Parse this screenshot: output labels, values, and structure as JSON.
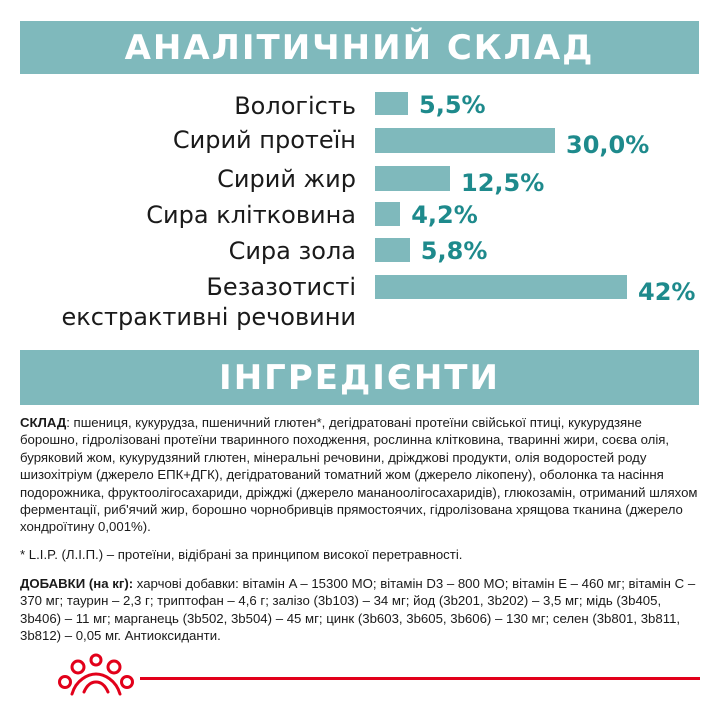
{
  "analysis": {
    "title": "АНАЛІТИЧНИЙ СКЛАД",
    "rows": [
      {
        "label": "Вологість",
        "value_text": "5,5%",
        "value": 5.5
      },
      {
        "label": "Сирий протеїн",
        "value_text": "30,0%",
        "value": 30.0
      },
      {
        "label": "Сирий жир",
        "value_text": "12,5%",
        "value": 12.5
      },
      {
        "label": "Сира клітковина",
        "value_text": "4,2%",
        "value": 4.2
      },
      {
        "label": "Сира зола",
        "value_text": "5,8%",
        "value": 5.8
      },
      {
        "label_line1": "Безазотисті",
        "label_line2": "екстрактивні речовини",
        "value_text": "42%",
        "value": 42
      }
    ]
  },
  "ingredients": {
    "title": "ІНГРЕДІЄНТИ",
    "composition_heading": "СКЛАД",
    "composition_text": ": пшениця, кукурудза, пшеничний глютен*, дегідратовані протеїни свійської птиці, кукурудзяне борошно, гідролізовані протеїни тваринного походження, рослинна клітковина, тваринні жири, соєва олія, буряковий жом, кукурудзяний глютен, мінеральні речовини, дріжджові продукти, олія водоростей роду шизохітріум (джерело ЕПК+ДГК), дегідратований томатний жом (джерело лікопену), оболонка та насіння подорожника, фруктоолігосахариди, дріжджі (джерело мананоолігосахаридів), глюкозамін, отриманий шляхом ферментації, риб'ячий жир, борошно чорнобривців прямостоячих, гідролізована хрящова тканина (джерело хондроїтину 0,001%).",
    "footnote": "* L.I.P. (Л.І.П.) – протеїни, відібрані за принципом високої перетравності.",
    "additives_heading": "ДОБАВКИ (на кг):",
    "additives_text": " харчові добавки: вітамін A – 15300 МО; вітамін D3 – 800 МО; вітамін E – 460 мг; вітамін C – 370 мг; таурин – 2,3 г; триптофан – 4,6 г; залізо (3b103) – 34 мг; йод (3b201, 3b202) – 3,5 мг; мідь (3b405, 3b406) – 11 мг; марганець (3b502, 3b504) – 45 мг; цинк (3b603, 3b605, 3b606) – 130 мг; селен (3b801, 3b811, 3b812) – 0,05 мг. Антиоксиданти."
  },
  "colors": {
    "banner": "#7fb9bc",
    "value_text": "#1e8a8c",
    "brand_red": "#e2001a"
  },
  "logo_icon": "royal-canin-crown-logo"
}
